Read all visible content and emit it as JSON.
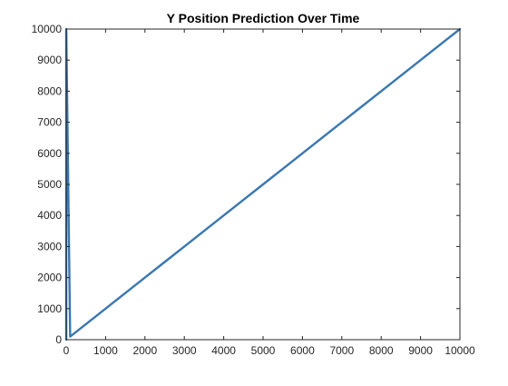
{
  "chart_data": {
    "type": "line",
    "title": "Y Position Prediction Over Time",
    "xlabel": "",
    "ylabel": "",
    "xlim": [
      0,
      10000
    ],
    "ylim": [
      0,
      10000
    ],
    "x_ticks": [
      0,
      1000,
      2000,
      3000,
      4000,
      5000,
      6000,
      7000,
      8000,
      9000,
      10000
    ],
    "y_ticks": [
      0,
      1000,
      2000,
      3000,
      4000,
      5000,
      6000,
      7000,
      8000,
      9000,
      10000
    ],
    "x_tick_labels": [
      "0",
      "1000",
      "2000",
      "3000",
      "4000",
      "5000",
      "6000",
      "7000",
      "8000",
      "9000",
      "10000"
    ],
    "y_tick_labels": [
      "0",
      "1000",
      "2000",
      "3000",
      "4000",
      "5000",
      "6000",
      "7000",
      "8000",
      "9000",
      "10000"
    ],
    "grid": false,
    "legend": "none",
    "series": [
      {
        "color": "#3a77b0",
        "x": [
          0,
          1,
          1,
          100,
          500,
          1000,
          1500,
          2000,
          2500,
          3000,
          3500,
          4000,
          4500,
          5000,
          5500,
          6000,
          6500,
          7000,
          7500,
          8000,
          8500,
          9000,
          9500,
          10000
        ],
        "y": [
          0,
          0,
          10000,
          100,
          500,
          1000,
          1500,
          2000,
          2500,
          3000,
          3500,
          4000,
          4500,
          5000,
          5500,
          6000,
          6500,
          7000,
          7500,
          8000,
          8500,
          9000,
          9500,
          10000
        ]
      }
    ]
  }
}
